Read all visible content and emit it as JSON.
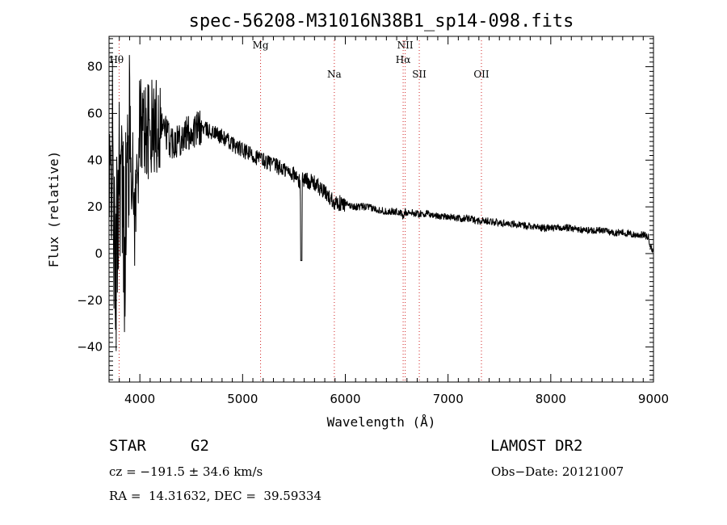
{
  "chart_data": {
    "type": "line",
    "title": "spec-56208-M31016N38B1_sp14-098.fits",
    "xlabel": "Wavelength (Å)",
    "ylabel": "Flux (relative)",
    "xlim": [
      3700,
      9000
    ],
    "ylim": [
      -55,
      93
    ],
    "x_ticks": [
      4000,
      5000,
      6000,
      7000,
      8000,
      9000
    ],
    "x_tick_labels": [
      "4000",
      "5000",
      "6000",
      "7000",
      "8000",
      "9000"
    ],
    "y_ticks": [
      -40,
      -20,
      0,
      20,
      40,
      60,
      80
    ],
    "y_tick_labels": [
      "−40",
      "−20",
      "0",
      "20",
      "40",
      "60",
      "80"
    ],
    "grid": false,
    "lines": [
      {
        "label": "Hθ",
        "x": 3798,
        "row": 0
      },
      {
        "label": "Mg",
        "x": 5175,
        "row": 0
      },
      {
        "label": "Na",
        "x": 5893,
        "row": 1
      },
      {
        "label": "NII",
        "x": 6583,
        "row": 0
      },
      {
        "label": "Hα",
        "x": 6563,
        "row": 0.5
      },
      {
        "label": "SII",
        "x": 6720,
        "row": 1
      },
      {
        "label": "OII",
        "x": 7325,
        "row": 1
      }
    ],
    "series": [
      {
        "name": "flux",
        "x": [
          3700,
          3730,
          3760,
          3800,
          3850,
          3900,
          3950,
          4000,
          4100,
          4200,
          4300,
          4400,
          4500,
          4600,
          4700,
          4800,
          4900,
          5000,
          5100,
          5200,
          5300,
          5400,
          5500,
          5560,
          5570,
          5580,
          5600,
          5700,
          5800,
          5900,
          6000,
          6100,
          6200,
          6300,
          6400,
          6500,
          6550,
          6563,
          6580,
          6700,
          6800,
          6900,
          7000,
          7100,
          7200,
          7300,
          7400,
          7500,
          7600,
          7700,
          7800,
          7900,
          8000,
          8100,
          8200,
          8300,
          8400,
          8500,
          8600,
          8700,
          8800,
          8900,
          8950,
          8980,
          9000
        ],
        "y": [
          10,
          50,
          -20,
          45,
          5,
          55,
          15,
          55,
          52,
          57,
          48,
          50,
          52,
          54,
          52,
          50,
          47,
          44,
          42,
          40,
          38,
          36,
          34,
          30,
          -3,
          32,
          32,
          30,
          26,
          22,
          21,
          20,
          20,
          19,
          18,
          18,
          17,
          15,
          18,
          17,
          17,
          16,
          16,
          15,
          15,
          14,
          14,
          13,
          13,
          12,
          12,
          11,
          11,
          11,
          11,
          10,
          10,
          10,
          9,
          9,
          8,
          8,
          7,
          2,
          1
        ]
      }
    ]
  },
  "info": {
    "object_class": "STAR",
    "subclass": "G2",
    "survey": "LAMOST DR2",
    "redshift": "cz = −191.5 ± 34.6 km/s",
    "obs_date": "Obs−Date: 20121007",
    "coords": "RA =  14.31632, DEC =  39.59334"
  }
}
